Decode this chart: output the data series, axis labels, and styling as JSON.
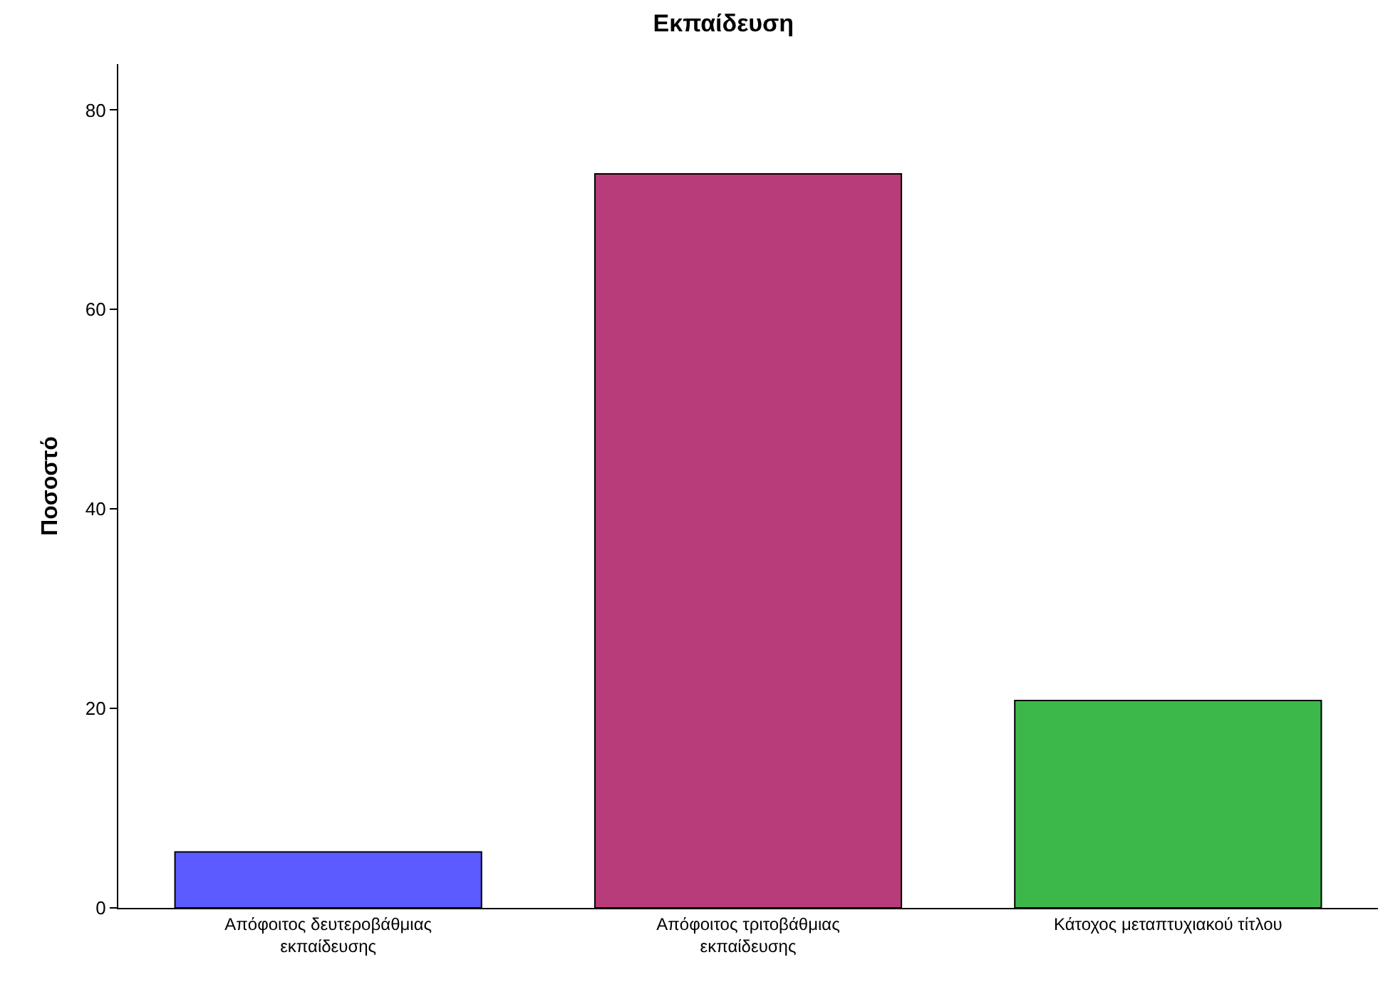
{
  "chart_data": {
    "type": "bar",
    "title": "Εκπαίδευση",
    "ylabel": "Ποσοστό",
    "categories": [
      "Απόφοιτος δευτεροβάθμιας εκπαίδευσης",
      "Απόφοιτος τριτοβάθμιας εκπαίδευσης",
      "Κάτοχος μεταπτυχιακού τίτλου"
    ],
    "values": [
      5.6,
      73.6,
      20.8
    ],
    "colors": [
      "#5b5bff",
      "#b83b7a",
      "#3cb84a"
    ],
    "ylim": [
      0,
      84.6
    ],
    "yticks": [
      0,
      20,
      40,
      60,
      80
    ]
  }
}
